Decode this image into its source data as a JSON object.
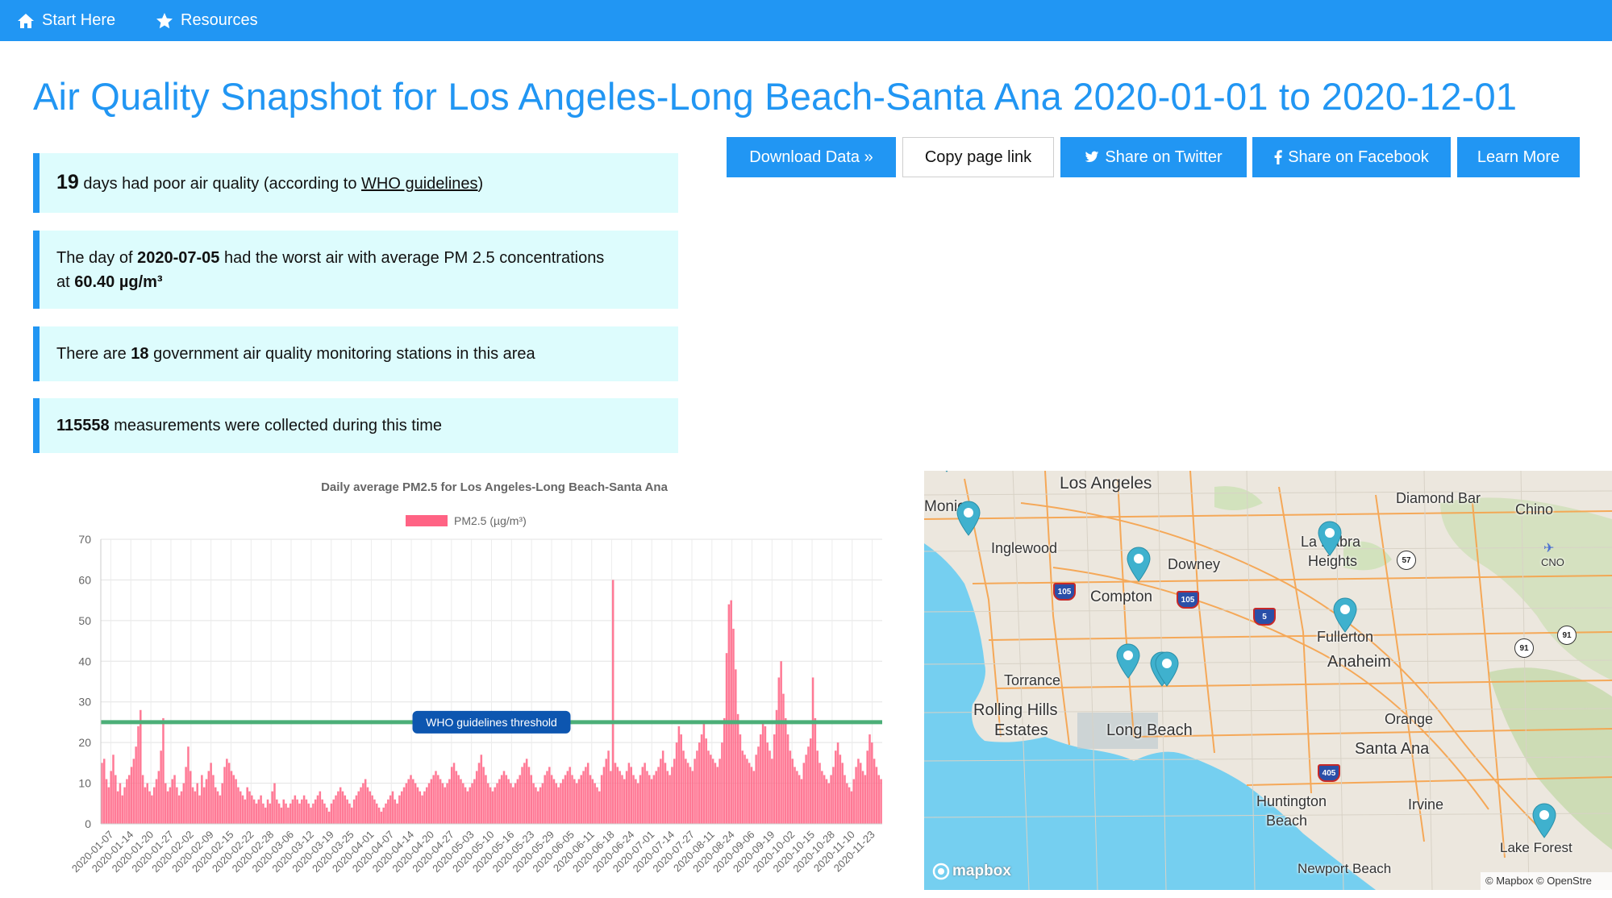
{
  "nav": {
    "items": [
      {
        "label": "Start Here",
        "icon": "home-icon"
      },
      {
        "label": "Resources",
        "icon": "star-icon"
      }
    ]
  },
  "page_title": "Air Quality Snapshot for Los Angeles-Long Beach-Santa Ana 2020-01-01 to 2020-12-01",
  "buttons": {
    "download": "Download Data »",
    "copy": "Copy page link",
    "twitter": "Share on Twitter",
    "facebook": "Share on Facebook",
    "learn": "Learn More"
  },
  "cards": {
    "poor_days_count": "19",
    "poor_days_text_1": "days had poor air quality (according to",
    "poor_days_link": "WHO guidelines",
    "poor_days_text_2": ")",
    "worst_day_text_1": "The day of",
    "worst_day_date": "2020-07-05",
    "worst_day_text_2": "had the worst air with average PM 2.5 concentrations at",
    "worst_day_value": "60.40 µg/m³",
    "stations_text_1": "There are",
    "stations_count": "18",
    "stations_text_2": "government air quality monitoring stations in this area",
    "measurements_count": "115558",
    "measurements_text": "measurements were collected during this time"
  },
  "colors": {
    "brand": "#2196f3",
    "card_bg": "#ddfcfd",
    "bar": "#ff6384",
    "threshold": "#4caf78",
    "badge": "#0d56b0"
  },
  "chart_data": {
    "type": "bar",
    "title": "Daily average PM2.5 for Los Angeles-Long Beach-Santa Ana",
    "legend": "PM2.5 (µg/m³)",
    "legend_position": "top",
    "ylim": [
      0,
      70
    ],
    "y_ticks": [
      0,
      10,
      20,
      30,
      40,
      50,
      60,
      70
    ],
    "grid": true,
    "x_start": "2020-01-01",
    "x_end": "2020-12-01",
    "x_tick_labels": [
      "2020-01-07",
      "2020-01-14",
      "2020-01-20",
      "2020-01-27",
      "2020-02-02",
      "2020-02-09",
      "2020-02-15",
      "2020-02-22",
      "2020-02-28",
      "2020-03-06",
      "2020-03-12",
      "2020-03-19",
      "2020-03-25",
      "2020-04-01",
      "2020-04-07",
      "2020-04-14",
      "2020-04-20",
      "2020-04-27",
      "2020-05-03",
      "2020-05-10",
      "2020-05-16",
      "2020-05-23",
      "2020-05-29",
      "2020-06-05",
      "2020-06-11",
      "2020-06-18",
      "2020-06-24",
      "2020-07-01",
      "2020-07-14",
      "2020-07-27",
      "2020-08-11",
      "2020-08-24",
      "2020-09-06",
      "2020-09-19",
      "2020-10-02",
      "2020-10-15",
      "2020-10-28",
      "2020-11-10",
      "2020-11-23"
    ],
    "threshold": {
      "value": 25,
      "label": "WHO guidelines threshold"
    },
    "series": [
      {
        "name": "PM2.5 (µg/m³)",
        "values": [
          15,
          16,
          11,
          9,
          13,
          17,
          12,
          8,
          10,
          7,
          9,
          11,
          12,
          14,
          16,
          19,
          24,
          28,
          12,
          9,
          10,
          8,
          7,
          9,
          11,
          13,
          18,
          26,
          10,
          8,
          9,
          11,
          12,
          9,
          7,
          8,
          10,
          14,
          19,
          13,
          9,
          8,
          10,
          7,
          12,
          9,
          11,
          13,
          15,
          12,
          9,
          8,
          7,
          10,
          14,
          16,
          15,
          13,
          12,
          11,
          9,
          8,
          7,
          6,
          9,
          8,
          7,
          6,
          5,
          6,
          7,
          5,
          4,
          6,
          5,
          8,
          10,
          6,
          5,
          4,
          6,
          5,
          4,
          5,
          6,
          7,
          6,
          5,
          6,
          7,
          6,
          5,
          4,
          5,
          6,
          7,
          8,
          6,
          5,
          4,
          3,
          5,
          6,
          7,
          8,
          9,
          8,
          7,
          6,
          5,
          4,
          6,
          7,
          8,
          9,
          10,
          11,
          9,
          8,
          7,
          6,
          5,
          4,
          3,
          4,
          5,
          6,
          7,
          8,
          6,
          5,
          7,
          8,
          9,
          10,
          11,
          12,
          11,
          10,
          9,
          8,
          7,
          8,
          9,
          10,
          11,
          12,
          13,
          12,
          11,
          10,
          9,
          10,
          11,
          14,
          15,
          13,
          12,
          11,
          10,
          9,
          8,
          9,
          10,
          11,
          13,
          15,
          17,
          14,
          12,
          10,
          9,
          8,
          9,
          10,
          11,
          12,
          13,
          12,
          11,
          10,
          9,
          10,
          11,
          12,
          14,
          15,
          16,
          14,
          12,
          10,
          9,
          8,
          9,
          10,
          12,
          13,
          14,
          12,
          11,
          10,
          9,
          10,
          11,
          12,
          13,
          14,
          12,
          11,
          10,
          11,
          12,
          13,
          14,
          15,
          12,
          11,
          10,
          9,
          8,
          12,
          14,
          16,
          18,
          13,
          60,
          15,
          14,
          13,
          12,
          11,
          13,
          15,
          14,
          12,
          11,
          10,
          12,
          14,
          15,
          13,
          12,
          11,
          12,
          13,
          14,
          16,
          18,
          15,
          13,
          12,
          14,
          16,
          20,
          24,
          22,
          18,
          16,
          15,
          14,
          13,
          16,
          18,
          20,
          22,
          25,
          21,
          18,
          17,
          16,
          15,
          14,
          16,
          20,
          26,
          42,
          54,
          55,
          48,
          38,
          27,
          22,
          18,
          17,
          16,
          15,
          14,
          13,
          17,
          19,
          22,
          25,
          24,
          20,
          18,
          16,
          22,
          28,
          36,
          40,
          32,
          26,
          22,
          18,
          16,
          14,
          13,
          12,
          11,
          15,
          17,
          19,
          21,
          36,
          26,
          18,
          15,
          13,
          12,
          11,
          10,
          12,
          14,
          18,
          20,
          17,
          15,
          12,
          10,
          9,
          8,
          11,
          14,
          16,
          15,
          13,
          12,
          18,
          22,
          20,
          16,
          14,
          12,
          11
        ]
      }
    ]
  },
  "map": {
    "labels": [
      "Los Angeles",
      "Monica",
      "Inglewood",
      "Downey",
      "Compton",
      "Diamond Bar",
      "Chino",
      "La Habra",
      "Heights",
      "Fullerton",
      "Anaheim",
      "Torrance",
      "Rolling Hills",
      "Estates",
      "Long Beach",
      "Orange",
      "Santa Ana",
      "Huntington",
      "Beach",
      "Irvine",
      "Lake Forest",
      "Newport Beach",
      "CNO"
    ],
    "shields": [
      "105",
      "105",
      "5",
      "405",
      "57",
      "91",
      "91"
    ],
    "logo": "mapbox",
    "attribution": "© Mapbox © OpenStre"
  }
}
